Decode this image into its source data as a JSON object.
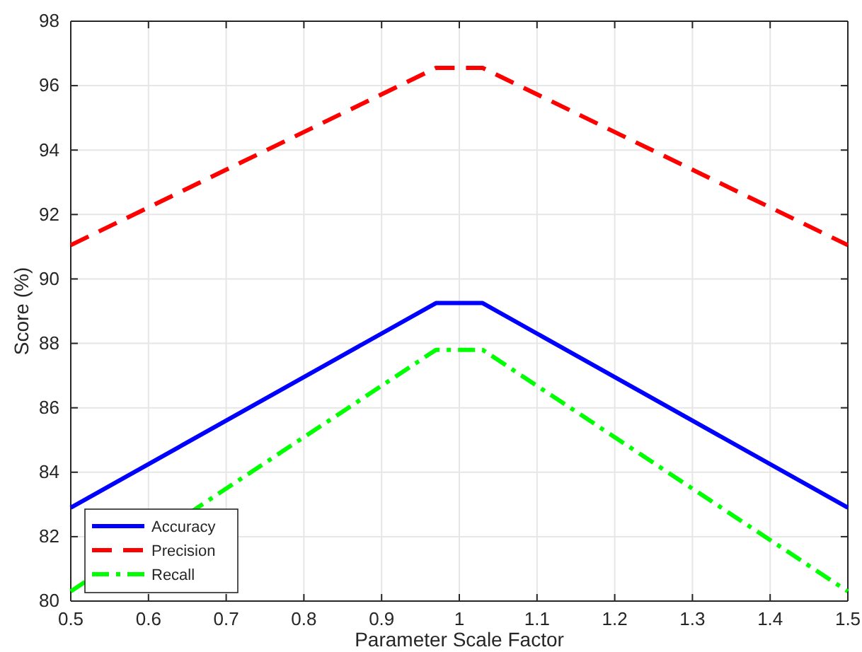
{
  "chart_data": {
    "type": "line",
    "xlabel": "Parameter Scale Factor",
    "ylabel": "Score (%)",
    "xlim": [
      0.5,
      1.5
    ],
    "xticks": [
      0.5,
      0.6,
      0.7,
      0.8,
      0.9,
      1,
      1.1,
      1.2,
      1.3,
      1.4,
      1.5
    ],
    "ylim": [
      80,
      98
    ],
    "yticks": [
      80,
      82,
      84,
      86,
      88,
      90,
      92,
      94,
      96,
      98
    ],
    "grid": true,
    "legend": "bottom left",
    "marker": "none",
    "series": [
      {
        "name": "Accuracy",
        "color": "#0000ff",
        "line_style": "solid",
        "x": [
          0.5,
          0.97,
          1.03,
          1.5
        ],
        "values": [
          82.9,
          89.25,
          89.25,
          82.9
        ]
      },
      {
        "name": "Precision",
        "color": "#ff0000",
        "line_style": "dashed",
        "x": [
          0.5,
          0.97,
          1.03,
          1.5
        ],
        "values": [
          91.05,
          96.55,
          96.55,
          91.05
        ]
      },
      {
        "name": "Recall",
        "color": "#00ff00",
        "line_style": "dashdot",
        "x": [
          0.5,
          0.97,
          1.03,
          1.5
        ],
        "values": [
          80.3,
          87.8,
          87.8,
          80.3
        ]
      }
    ]
  }
}
